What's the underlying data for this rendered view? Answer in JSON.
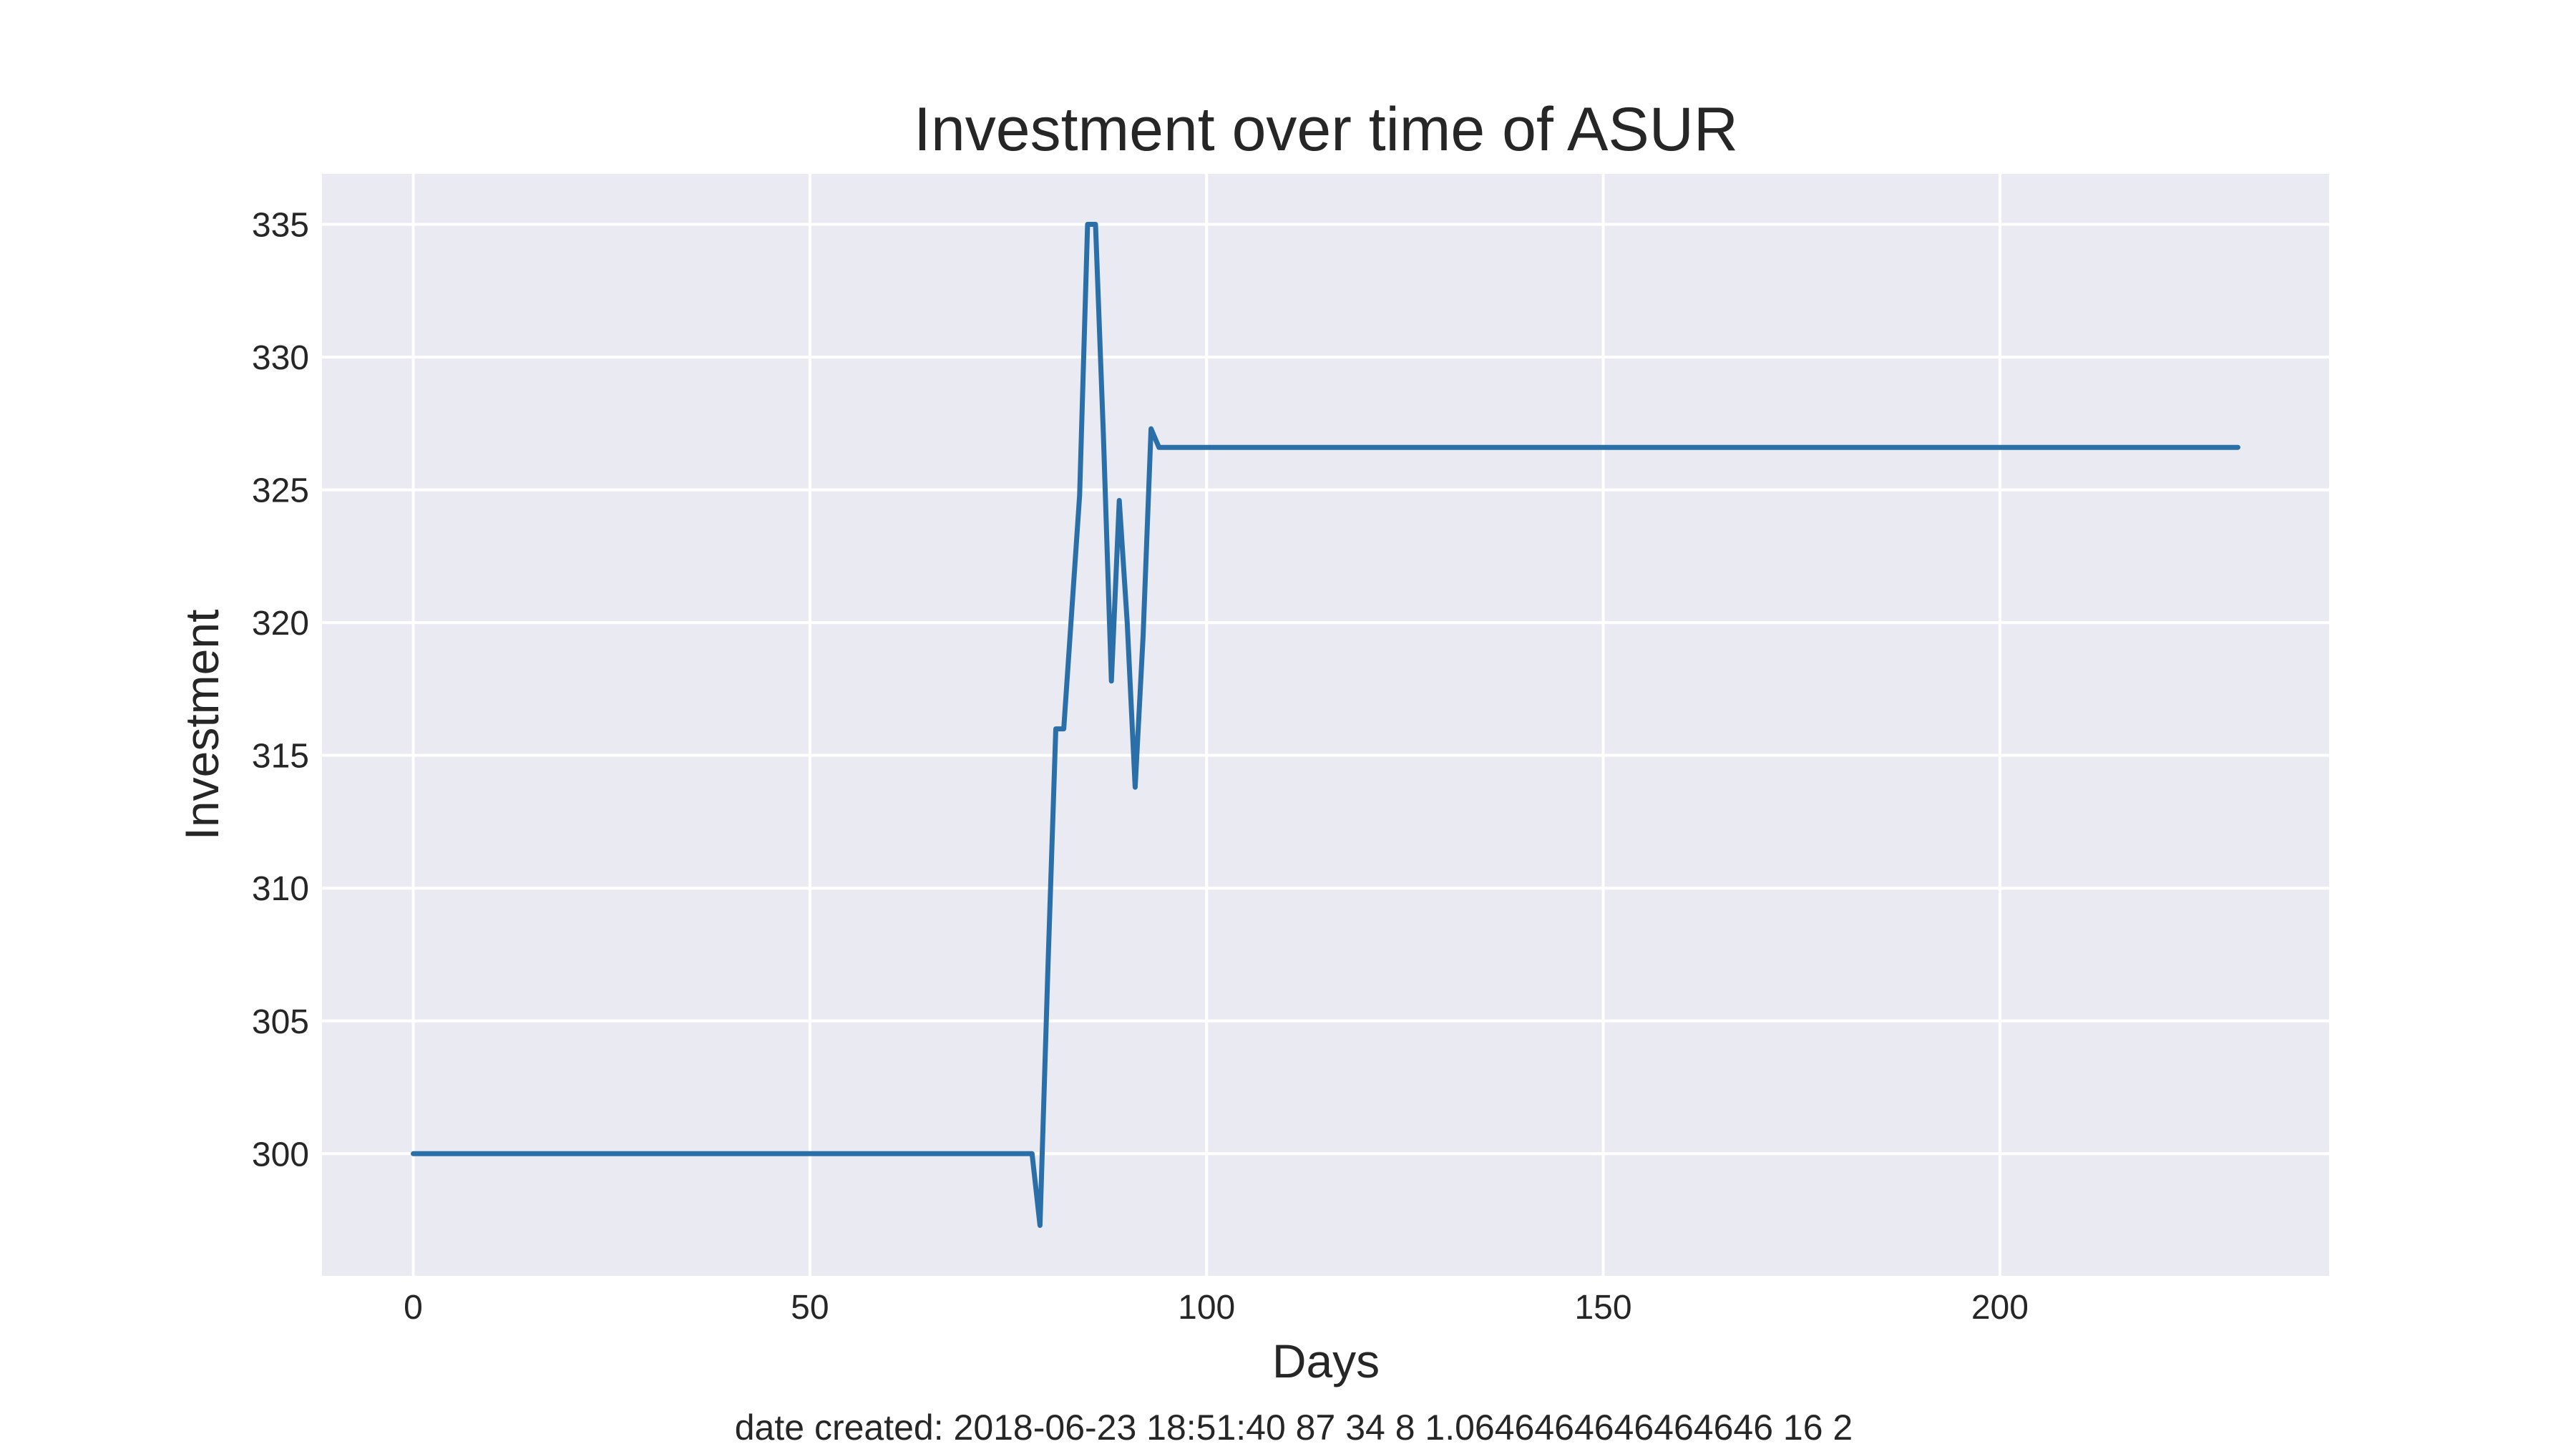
{
  "chart_data": {
    "type": "line",
    "title": "Investment over time of ASUR",
    "xlabel": "Days",
    "ylabel": "Investment",
    "footer": "date created: 2018-06-23 18:51:40 87 34 8 1.0646464646464646 16 2",
    "xlim": [
      -11.5,
      241.5
    ],
    "ylim": [
      295.4,
      336.9
    ],
    "xticks": [
      0,
      50,
      100,
      150,
      200
    ],
    "yticks": [
      300,
      305,
      310,
      315,
      320,
      325,
      330,
      335
    ],
    "grid": true,
    "legend": "none",
    "series": [
      {
        "color": "#2a6fa8",
        "x": [
          0,
          78,
          79,
          80,
          81,
          82,
          84,
          85,
          86,
          87,
          88,
          89,
          90,
          91,
          92,
          93,
          94,
          230
        ],
        "y": [
          300.0,
          300.0,
          297.3,
          307.0,
          316.0,
          316.0,
          324.8,
          335.0,
          335.0,
          327.0,
          317.8,
          324.6,
          320.0,
          313.8,
          319.5,
          327.3,
          326.6,
          326.6
        ]
      }
    ]
  },
  "colors": {
    "plot_background": "#eaeaf2",
    "grid": "#ffffff",
    "line": "#2a6fa8"
  }
}
